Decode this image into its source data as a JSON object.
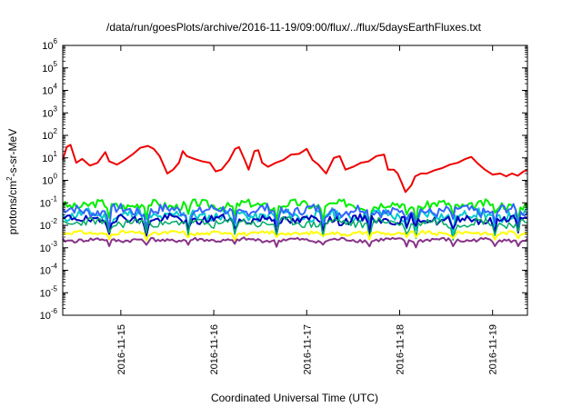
{
  "chart_data": {
    "type": "line",
    "title": "/data/run/goesPlots/archive/2016-11-19/09:00/flux/../flux/5daysEarthFluxes.txt",
    "xlabel": "Coordinated Universal Time (UTC)",
    "ylabel_main": "protons/cm",
    "ylabel_sup": "2",
    "ylabel_tail": "-s-sr-MeV",
    "y_scale": "log",
    "ylim": [
      1e-06,
      1000000
    ],
    "y_ticks": [
      {
        "value": 1e-06,
        "base": "10",
        "exp": "-6"
      },
      {
        "value": 1e-05,
        "base": "10",
        "exp": "-5"
      },
      {
        "value": 0.0001,
        "base": "10",
        "exp": "-4"
      },
      {
        "value": 0.001,
        "base": "10",
        "exp": "-3"
      },
      {
        "value": 0.01,
        "base": "10",
        "exp": "-2"
      },
      {
        "value": 0.1,
        "base": "10",
        "exp": "-1"
      },
      {
        "value": 1,
        "base": "10",
        "exp": "0"
      },
      {
        "value": 10,
        "base": "10",
        "exp": "1"
      },
      {
        "value": 100,
        "base": "10",
        "exp": "2"
      },
      {
        "value": 1000,
        "base": "10",
        "exp": "3"
      },
      {
        "value": 10000,
        "base": "10",
        "exp": "4"
      },
      {
        "value": 100000,
        "base": "10",
        "exp": "5"
      },
      {
        "value": 1000000,
        "base": "10",
        "exp": "6"
      }
    ],
    "xlim": [
      "2016-11-14T09:00",
      "2016-11-19T09:00"
    ],
    "x_ticks": [
      {
        "value": "2016-11-15T00:00",
        "label": "2016-11-15"
      },
      {
        "value": "2016-11-16T00:00",
        "label": "2016-11-16"
      },
      {
        "value": "2016-11-17T00:00",
        "label": "2016-11-17"
      },
      {
        "value": "2016-11-18T00:00",
        "label": "2016-11-18"
      },
      {
        "value": "2016-11-19T00:00",
        "label": "2016-11-19"
      }
    ],
    "grid": false,
    "legend": "none",
    "series": [
      {
        "color": "#ee0000",
        "width": 2,
        "points": [
          [
            "2016-11-14T09:00",
            8
          ],
          [
            "2016-11-14T10:00",
            30
          ],
          [
            "2016-11-14T11:00",
            38
          ],
          [
            "2016-11-14T12:30",
            6
          ],
          [
            "2016-11-14T14:00",
            9
          ],
          [
            "2016-11-14T16:00",
            4.5
          ],
          [
            "2016-11-14T18:00",
            6
          ],
          [
            "2016-11-14T20:00",
            18
          ],
          [
            "2016-11-14T21:00",
            7
          ],
          [
            "2016-11-14T23:00",
            5
          ],
          [
            "2016-11-15T01:00",
            8
          ],
          [
            "2016-11-15T03:00",
            14
          ],
          [
            "2016-11-15T05:00",
            28
          ],
          [
            "2016-11-15T07:00",
            34
          ],
          [
            "2016-11-15T08:30",
            25
          ],
          [
            "2016-11-15T10:00",
            12
          ],
          [
            "2016-11-15T11:00",
            5
          ],
          [
            "2016-11-15T12:00",
            2
          ],
          [
            "2016-11-15T13:30",
            3
          ],
          [
            "2016-11-15T15:00",
            6
          ],
          [
            "2016-11-15T16:00",
            20
          ],
          [
            "2016-11-15T17:00",
            12
          ],
          [
            "2016-11-15T19:00",
            9
          ],
          [
            "2016-11-15T21:00",
            7
          ],
          [
            "2016-11-15T23:00",
            6
          ],
          [
            "2016-11-16T00:30",
            2.5
          ],
          [
            "2016-11-16T02:00",
            3
          ],
          [
            "2016-11-16T04:00",
            8
          ],
          [
            "2016-11-16T05:30",
            25
          ],
          [
            "2016-11-16T06:30",
            30
          ],
          [
            "2016-11-16T08:00",
            8
          ],
          [
            "2016-11-16T09:00",
            3
          ],
          [
            "2016-11-16T10:30",
            20
          ],
          [
            "2016-11-16T11:30",
            22
          ],
          [
            "2016-11-16T12:30",
            6
          ],
          [
            "2016-11-16T14:00",
            4
          ],
          [
            "2016-11-16T16:00",
            6
          ],
          [
            "2016-11-16T18:00",
            8
          ],
          [
            "2016-11-16T20:00",
            14
          ],
          [
            "2016-11-16T22:00",
            15
          ],
          [
            "2016-11-17T00:00",
            25
          ],
          [
            "2016-11-17T01:30",
            8
          ],
          [
            "2016-11-17T03:00",
            5
          ],
          [
            "2016-11-17T05:00",
            2
          ],
          [
            "2016-11-17T07:00",
            10
          ],
          [
            "2016-11-17T08:30",
            12
          ],
          [
            "2016-11-17T10:00",
            3
          ],
          [
            "2016-11-17T12:00",
            4
          ],
          [
            "2016-11-17T14:00",
            6
          ],
          [
            "2016-11-17T16:00",
            7
          ],
          [
            "2016-11-17T18:00",
            12
          ],
          [
            "2016-11-17T20:00",
            14
          ],
          [
            "2016-11-17T21:00",
            3
          ],
          [
            "2016-11-17T22:30",
            3
          ],
          [
            "2016-11-17T23:30",
            2
          ],
          [
            "2016-11-18T00:30",
            0.8
          ],
          [
            "2016-11-18T01:30",
            0.3
          ],
          [
            "2016-11-18T03:00",
            0.6
          ],
          [
            "2016-11-18T04:00",
            1.5
          ],
          [
            "2016-11-18T05:30",
            2
          ],
          [
            "2016-11-18T07:00",
            2
          ],
          [
            "2016-11-18T09:00",
            2.8
          ],
          [
            "2016-11-18T11:00",
            3.5
          ],
          [
            "2016-11-18T13:00",
            5
          ],
          [
            "2016-11-18T15:00",
            6
          ],
          [
            "2016-11-18T17:00",
            9
          ],
          [
            "2016-11-18T18:30",
            11
          ],
          [
            "2016-11-18T20:00",
            6
          ],
          [
            "2016-11-18T22:00",
            3
          ],
          [
            "2016-11-19T00:00",
            1.8
          ],
          [
            "2016-11-19T02:00",
            2
          ],
          [
            "2016-11-19T03:30",
            1.5
          ],
          [
            "2016-11-19T05:00",
            2
          ],
          [
            "2016-11-19T06:30",
            1.6
          ],
          [
            "2016-11-19T08:00",
            2.5
          ],
          [
            "2016-11-19T09:00",
            2.8
          ]
        ]
      },
      {
        "color": "#00ee00",
        "width": 2,
        "base": 0.08,
        "amp": 0.18,
        "seed": 3
      },
      {
        "color": "#00cccc",
        "width": 2,
        "base": 0.028,
        "amp": 0.22,
        "seed": 11
      },
      {
        "color": "#3366ff",
        "width": 2,
        "base": 0.045,
        "amp": 0.22,
        "seed": 7
      },
      {
        "color": "#0000bb",
        "width": 2,
        "base": 0.018,
        "amp": 0.18,
        "seed": 19
      },
      {
        "color": "#00aa66",
        "width": 1.5,
        "base": 0.013,
        "amp": 0.18,
        "seed": 23
      },
      {
        "color": "#ffff00",
        "width": 2,
        "base": 0.0045,
        "amp": 0.08,
        "seed": 31
      },
      {
        "color": "#883388",
        "width": 2,
        "base": 0.0022,
        "amp": 0.08,
        "seed": 41
      }
    ]
  }
}
